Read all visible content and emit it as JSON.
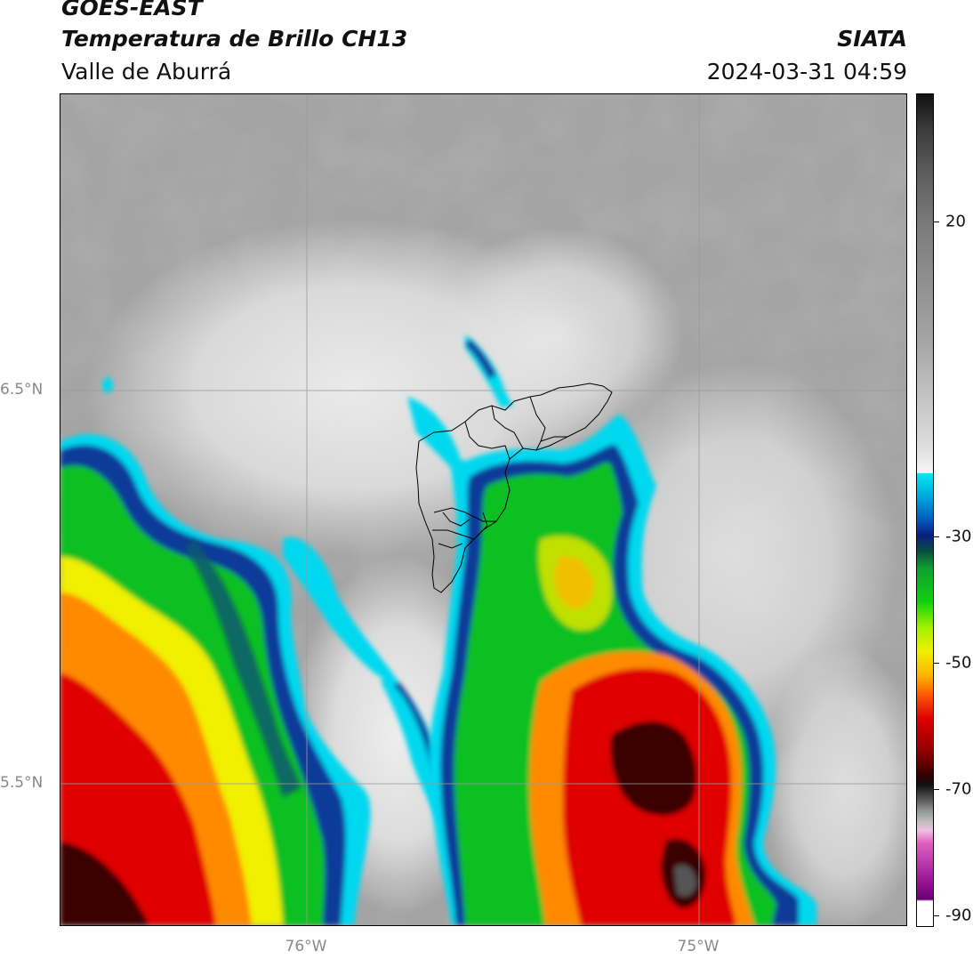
{
  "header": {
    "title": "GOES-EAST",
    "subtitle": "Temperatura de Brillo CH13",
    "region": "Valle de Aburrá",
    "organization": "SIATA",
    "datetime": "2024-03-31 04:59"
  },
  "map": {
    "latitude_labels": [
      "6.5°N",
      "5.5°N"
    ],
    "longitude_labels": [
      "76°W",
      "75°W"
    ],
    "gridlines": true
  },
  "colorbar": {
    "tick_labels": [
      "20",
      "-30",
      "-50",
      "-70",
      "-90"
    ],
    "colors": {
      "warm_gray": "#8a8a8a",
      "light": "#f2f2f2",
      "cyan": "#00d8f0",
      "blue": "#0a3a9a",
      "green": "#10c020",
      "yellow": "#f0f000",
      "orange": "#ff8a00",
      "red": "#e00000",
      "black": "#101010",
      "magenta": "#d040c0"
    }
  }
}
